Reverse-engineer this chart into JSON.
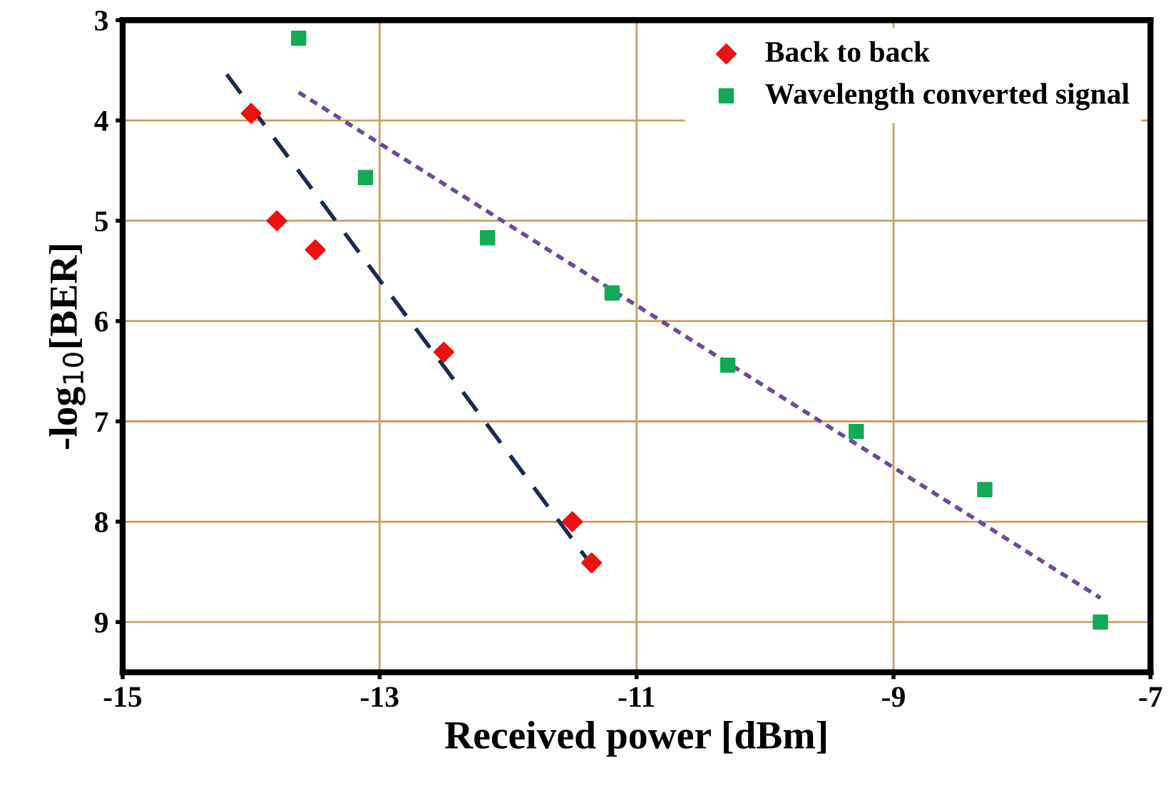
{
  "chart_data": {
    "type": "scatter",
    "xlabel": "Received power [dBm]",
    "ylabel": "-log$_{10}$[BER]",
    "xlim": [
      -15,
      -7
    ],
    "xticks": [
      -15,
      -13,
      -11,
      -9,
      -7
    ],
    "ylim": [
      9.5,
      3
    ],
    "yticks": [
      3,
      4,
      5,
      6,
      7,
      8,
      9
    ],
    "grid": true,
    "legend": "top right",
    "series": [
      {
        "name": "Back to back",
        "marker": "diamond",
        "color": "#ee1111",
        "x": [
          -14.0,
          -13.8,
          -13.5,
          -12.5,
          -11.5,
          -11.35
        ],
        "values": [
          3.93,
          5.0,
          5.29,
          6.31,
          8.0,
          8.41
        ]
      },
      {
        "name": "Wavelength converted signal",
        "marker": "square",
        "color": "#11aa55",
        "x": [
          -13.63,
          -13.11,
          -12.16,
          -11.19,
          -10.29,
          -9.29,
          -8.29,
          -7.39
        ],
        "values": [
          3.18,
          4.57,
          5.17,
          5.72,
          6.44,
          7.1,
          7.68,
          9.0
        ]
      },
      {
        "type": "line",
        "line_style": "dashed",
        "color": "#1a2a50",
        "x": [
          -14.19,
          -11.34
        ],
        "values": [
          3.54,
          8.45
        ]
      },
      {
        "type": "line",
        "line_style": "dotted",
        "color": "#6a4a9a",
        "x": [
          -13.63,
          -7.39
        ],
        "values": [
          3.72,
          8.76
        ]
      }
    ]
  }
}
